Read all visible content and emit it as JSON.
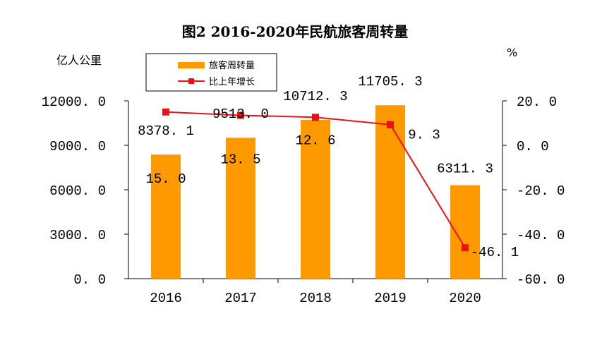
{
  "chart_data": {
    "type": "bar",
    "title": "图2 2016-2020年民航旅客周转量",
    "left_unit": "亿人公里",
    "right_unit": "%",
    "categories": [
      "2016",
      "2017",
      "2018",
      "2019",
      "2020"
    ],
    "left_axis": {
      "ylim": [
        0,
        12000
      ],
      "ticks": [
        0,
        3000,
        6000,
        9000,
        12000
      ],
      "tick_labels": [
        "0. 0",
        "3000. 0",
        "6000. 0",
        "9000. 0",
        "12000. 0"
      ]
    },
    "right_axis": {
      "ylim": [
        -60,
        20
      ],
      "ticks": [
        -60,
        -40,
        -20,
        0,
        20
      ],
      "tick_labels": [
        "-60. 0",
        "-40. 0",
        "-20. 0",
        "0. 0",
        "20. 0"
      ]
    },
    "series": [
      {
        "name": "旅客周转量",
        "type": "bar",
        "axis": "left",
        "color": "#FF9900",
        "values": [
          8378.1,
          9513.0,
          10712.3,
          11705.3,
          6311.3
        ],
        "labels": [
          "8378. 1",
          "9513. 0",
          "10712. 3",
          "11705. 3",
          "6311. 3"
        ]
      },
      {
        "name": "比上年增长",
        "type": "line",
        "axis": "right",
        "color": "#E8121A",
        "values": [
          15.0,
          13.5,
          12.6,
          9.3,
          -46.1
        ],
        "labels": [
          "15. 0",
          "13. 5",
          "12. 6",
          "9. 3",
          "-46. 1"
        ]
      }
    ],
    "legend": {
      "position": "top-left"
    },
    "grid": false
  }
}
